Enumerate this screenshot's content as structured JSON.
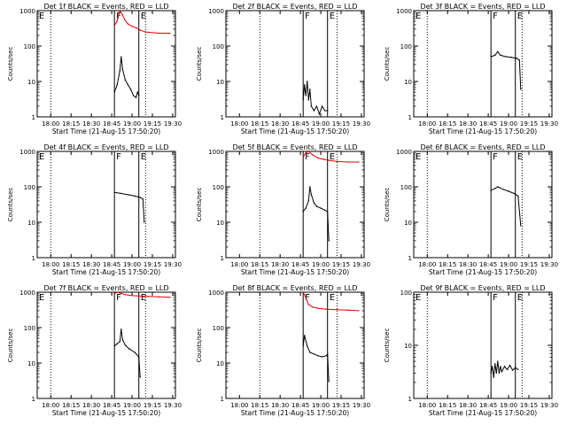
{
  "figure": {
    "xlabel": "Start Time (21-Aug-15 17:50:20)",
    "ylabel": "Counts/sec",
    "xticks": [
      "18:00",
      "18:15",
      "18:30",
      "18:45",
      "19:00",
      "19:15",
      "19:30"
    ],
    "yticks": [
      "1",
      "10",
      "100",
      "1000"
    ],
    "colors": {
      "events": "#000000",
      "lld": "#dd0000",
      "axes": "#000000",
      "background": "#ffffff"
    }
  },
  "chart_data": [
    {
      "type": "line",
      "title": "Det 1f BLACK = Events, RED = LLD",
      "xlim": [
        "17:50",
        "19:32"
      ],
      "ylim": [
        1,
        1000
      ],
      "yscale": "log",
      "dotted_lines": [
        "18:00",
        "19:10"
      ],
      "solid_lines": [
        "18:47",
        "19:05"
      ],
      "markers": [
        {
          "label": "E",
          "at": "17:50"
        },
        {
          "label": "F",
          "at": "18:47"
        },
        {
          "label": "E",
          "at": "19:05"
        }
      ],
      "series": [
        {
          "color": "red",
          "x": [
            "18:47",
            "18:49",
            "18:51",
            "18:53",
            "18:55",
            "18:57",
            "19:00",
            "19:03",
            "19:06",
            "19:10",
            "19:20",
            "19:28"
          ],
          "y": [
            380,
            500,
            1000,
            750,
            520,
            420,
            360,
            330,
            280,
            250,
            230,
            230
          ]
        },
        {
          "color": "black",
          "x": [
            "18:47",
            "18:49",
            "18:51",
            "18:52",
            "18:53",
            "18:55",
            "18:57",
            "18:59",
            "19:01",
            "19:03",
            "19:04",
            "19:05"
          ],
          "y": [
            5,
            8,
            20,
            50,
            22,
            11,
            8,
            6,
            4,
            3.5,
            5,
            4
          ]
        }
      ]
    },
    {
      "type": "line",
      "title": "Det 2f BLACK = Events, RED = LLD",
      "xlim": [
        "17:50",
        "19:32"
      ],
      "ylim": [
        1,
        1000
      ],
      "yscale": "log",
      "dotted_lines": [
        "18:15",
        "19:12"
      ],
      "solid_lines": [
        "18:47",
        "19:05"
      ],
      "markers": [
        {
          "label": "F",
          "at": "18:47"
        },
        {
          "label": "E",
          "at": "19:05"
        }
      ],
      "series": [
        {
          "color": "black",
          "x": [
            "18:47",
            "18:48",
            "18:49",
            "18:50",
            "18:51",
            "18:52",
            "18:53",
            "18:55",
            "18:57",
            "18:59",
            "19:01",
            "19:03",
            "19:05"
          ],
          "y": [
            3,
            8,
            4,
            10,
            3,
            6,
            2,
            1.5,
            2,
            1.2,
            2,
            1.5,
            1.5
          ]
        }
      ]
    },
    {
      "type": "line",
      "title": "Det 3f BLACK = Events, RED = LLD",
      "xlim": [
        "17:50",
        "19:32"
      ],
      "ylim": [
        1,
        1000
      ],
      "yscale": "log",
      "dotted_lines": [
        "18:00",
        "19:10"
      ],
      "solid_lines": [
        "18:47",
        "19:05"
      ],
      "markers": [
        {
          "label": "E",
          "at": "17:50"
        },
        {
          "label": "F",
          "at": "18:47"
        },
        {
          "label": "E",
          "at": "19:05"
        }
      ],
      "series": [
        {
          "color": "black",
          "x": [
            "18:47",
            "18:50",
            "18:52",
            "18:54",
            "18:58",
            "19:02",
            "19:06",
            "19:08",
            "19:09"
          ],
          "y": [
            50,
            55,
            70,
            55,
            50,
            48,
            45,
            40,
            6
          ]
        }
      ]
    },
    {
      "type": "line",
      "title": "Det 4f BLACK = Events, RED = LLD",
      "xlim": [
        "17:50",
        "19:32"
      ],
      "ylim": [
        1,
        1000
      ],
      "yscale": "log",
      "dotted_lines": [
        "18:00",
        "19:10"
      ],
      "solid_lines": [
        "18:47",
        "19:05"
      ],
      "markers": [
        {
          "label": "E",
          "at": "17:50"
        },
        {
          "label": "F",
          "at": "18:47"
        },
        {
          "label": "E",
          "at": "19:05"
        }
      ],
      "series": [
        {
          "color": "black",
          "x": [
            "18:47",
            "18:52",
            "18:57",
            "19:02",
            "19:06",
            "19:08",
            "19:09"
          ],
          "y": [
            70,
            65,
            60,
            55,
            50,
            45,
            10
          ]
        }
      ]
    },
    {
      "type": "line",
      "title": "Det 5f BLACK = Events, RED = LLD",
      "xlim": [
        "17:50",
        "19:32"
      ],
      "ylim": [
        1,
        1000
      ],
      "yscale": "log",
      "dotted_lines": [
        "18:15",
        "19:12"
      ],
      "solid_lines": [
        "18:47",
        "19:05"
      ],
      "markers": [
        {
          "label": "F",
          "at": "18:47"
        },
        {
          "label": "E",
          "at": "19:05"
        }
      ],
      "series": [
        {
          "color": "red",
          "x": [
            "18:47",
            "18:49",
            "18:51",
            "18:54",
            "18:58",
            "19:02",
            "19:06",
            "19:12",
            "19:20",
            "19:28"
          ],
          "y": [
            700,
            900,
            1000,
            800,
            650,
            600,
            560,
            520,
            500,
            500
          ]
        },
        {
          "color": "black",
          "x": [
            "18:47",
            "18:49",
            "18:51",
            "18:52",
            "18:53",
            "18:55",
            "18:57",
            "19:00",
            "19:03",
            "19:05",
            "19:06"
          ],
          "y": [
            20,
            25,
            40,
            100,
            60,
            35,
            28,
            25,
            22,
            20,
            3
          ]
        }
      ]
    },
    {
      "type": "line",
      "title": "Det 6f BLACK = Events, RED = LLD",
      "xlim": [
        "17:50",
        "19:32"
      ],
      "ylim": [
        1,
        1000
      ],
      "yscale": "log",
      "dotted_lines": [
        "18:00",
        "19:10"
      ],
      "solid_lines": [
        "18:47",
        "19:05"
      ],
      "markers": [
        {
          "label": "E",
          "at": "17:50"
        },
        {
          "label": "F",
          "at": "18:47"
        },
        {
          "label": "E",
          "at": "19:05"
        }
      ],
      "series": [
        {
          "color": "black",
          "x": [
            "18:47",
            "18:50",
            "18:52",
            "18:56",
            "19:00",
            "19:04",
            "19:07",
            "19:09"
          ],
          "y": [
            80,
            90,
            100,
            85,
            75,
            65,
            55,
            8
          ]
        }
      ]
    },
    {
      "type": "line",
      "title": "Det 7f BLACK = Events, RED = LLD",
      "xlim": [
        "17:50",
        "19:32"
      ],
      "ylim": [
        1,
        1000
      ],
      "yscale": "log",
      "dotted_lines": [
        "18:00",
        "19:10"
      ],
      "solid_lines": [
        "18:47",
        "19:05"
      ],
      "markers": [
        {
          "label": "E",
          "at": "17:50"
        },
        {
          "label": "F",
          "at": "18:47"
        },
        {
          "label": "E",
          "at": "19:05"
        }
      ],
      "series": [
        {
          "color": "red",
          "x": [
            "18:47",
            "18:49",
            "18:51",
            "18:55",
            "19:00",
            "19:05",
            "19:12",
            "19:20",
            "19:28"
          ],
          "y": [
            900,
            1000,
            950,
            850,
            800,
            780,
            760,
            740,
            720
          ]
        },
        {
          "color": "black",
          "x": [
            "18:47",
            "18:49",
            "18:51",
            "18:52",
            "18:53",
            "18:55",
            "18:58",
            "19:02",
            "19:05",
            "19:06"
          ],
          "y": [
            30,
            35,
            40,
            90,
            45,
            32,
            25,
            20,
            15,
            4
          ]
        }
      ]
    },
    {
      "type": "line",
      "title": "Det 8f BLACK = Events, RED = LLD",
      "xlim": [
        "17:50",
        "19:32"
      ],
      "ylim": [
        1,
        1000
      ],
      "yscale": "log",
      "dotted_lines": [
        "18:15",
        "19:12"
      ],
      "solid_lines": [
        "18:47",
        "19:05"
      ],
      "markers": [
        {
          "label": "F",
          "at": "18:47"
        },
        {
          "label": "E",
          "at": "19:05"
        }
      ],
      "series": [
        {
          "color": "red",
          "x": [
            "18:47",
            "18:49",
            "18:51",
            "18:54",
            "18:58",
            "19:04",
            "19:12",
            "19:20",
            "19:28"
          ],
          "y": [
            1000,
            700,
            450,
            380,
            350,
            330,
            320,
            310,
            300
          ]
        },
        {
          "color": "black",
          "x": [
            "18:47",
            "18:48",
            "18:50",
            "18:52",
            "18:55",
            "18:58",
            "19:01",
            "19:04",
            "19:05",
            "19:06"
          ],
          "y": [
            30,
            60,
            30,
            20,
            18,
            16,
            15,
            16,
            18,
            3
          ]
        }
      ]
    },
    {
      "type": "line",
      "title": "Det 9f BLACK = Events, RED = LLD",
      "xlim": [
        "17:50",
        "19:32"
      ],
      "ylim": [
        1,
        100
      ],
      "yscale": "log",
      "dotted_lines": [
        "18:00",
        "19:10"
      ],
      "solid_lines": [
        "18:47",
        "19:05"
      ],
      "markers": [
        {
          "label": "E",
          "at": "17:50"
        },
        {
          "label": "F",
          "at": "18:47"
        },
        {
          "label": "E",
          "at": "19:05"
        }
      ],
      "series": [
        {
          "color": "black",
          "x": [
            "18:47",
            "18:48",
            "18:49",
            "18:50",
            "18:51",
            "18:52",
            "18:53",
            "18:54",
            "18:55",
            "18:57",
            "18:59",
            "19:01",
            "19:03",
            "19:05",
            "19:07"
          ],
          "y": [
            3,
            4,
            2.5,
            4.5,
            3,
            5,
            3,
            4,
            3.2,
            4,
            3.5,
            4.2,
            3.4,
            3.8,
            3.5
          ]
        }
      ]
    }
  ]
}
